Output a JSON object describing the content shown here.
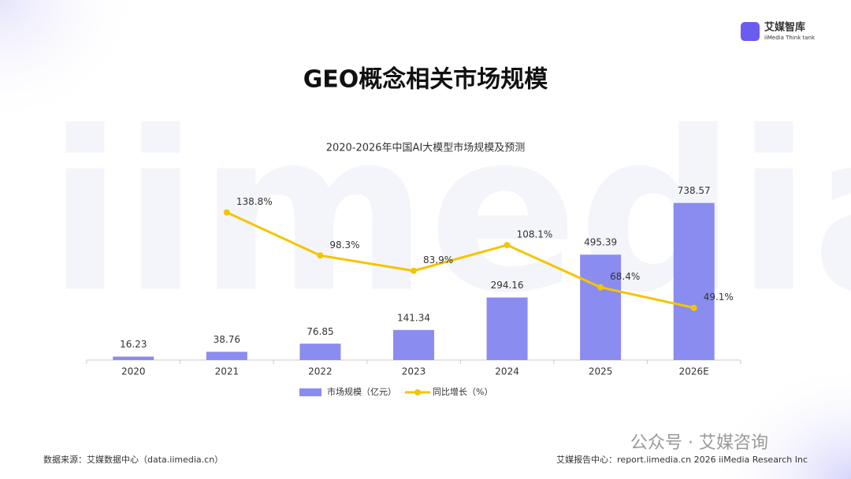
{
  "page": {
    "logo": "艾媒智库",
    "logo_sub": "iiMedia Think tank",
    "watermark": "iimedia",
    "heading": "GEO概念相关市场规模",
    "source": "数据来源：艾媒数据中心（data.iimedia.cn）",
    "footer": "艾媒报告中心：report.iimedia.cn  2026 iiMedia Research Inc",
    "wechat": "公众号 · 艾媒咨询"
  },
  "chart_data": {
    "type": "bar",
    "title": "2020-2026年中国AI大模型市场规模及预测",
    "categories": [
      "2020",
      "2021",
      "2022",
      "2023",
      "2024",
      "2025",
      "2026E"
    ],
    "series": [
      {
        "name": "市场规模（亿元）",
        "type": "bar",
        "color": "#8b8cf0",
        "values": [
          16.23,
          38.76,
          76.85,
          141.34,
          294.16,
          495.39,
          738.57
        ]
      },
      {
        "name": "同比增长（%）",
        "type": "line",
        "axis": "y2",
        "color": "#f5c400",
        "values": [
          null,
          138.8,
          98.3,
          83.9,
          108.1,
          68.4,
          49.1
        ],
        "value_labels": [
          null,
          "138.8%",
          "98.3%",
          "83.9%",
          "108.1%",
          "68.4%",
          "49.1%"
        ]
      }
    ],
    "ylim": [
      0,
      800
    ],
    "y2lim": [
      0,
      160
    ],
    "legend": "bottom"
  }
}
